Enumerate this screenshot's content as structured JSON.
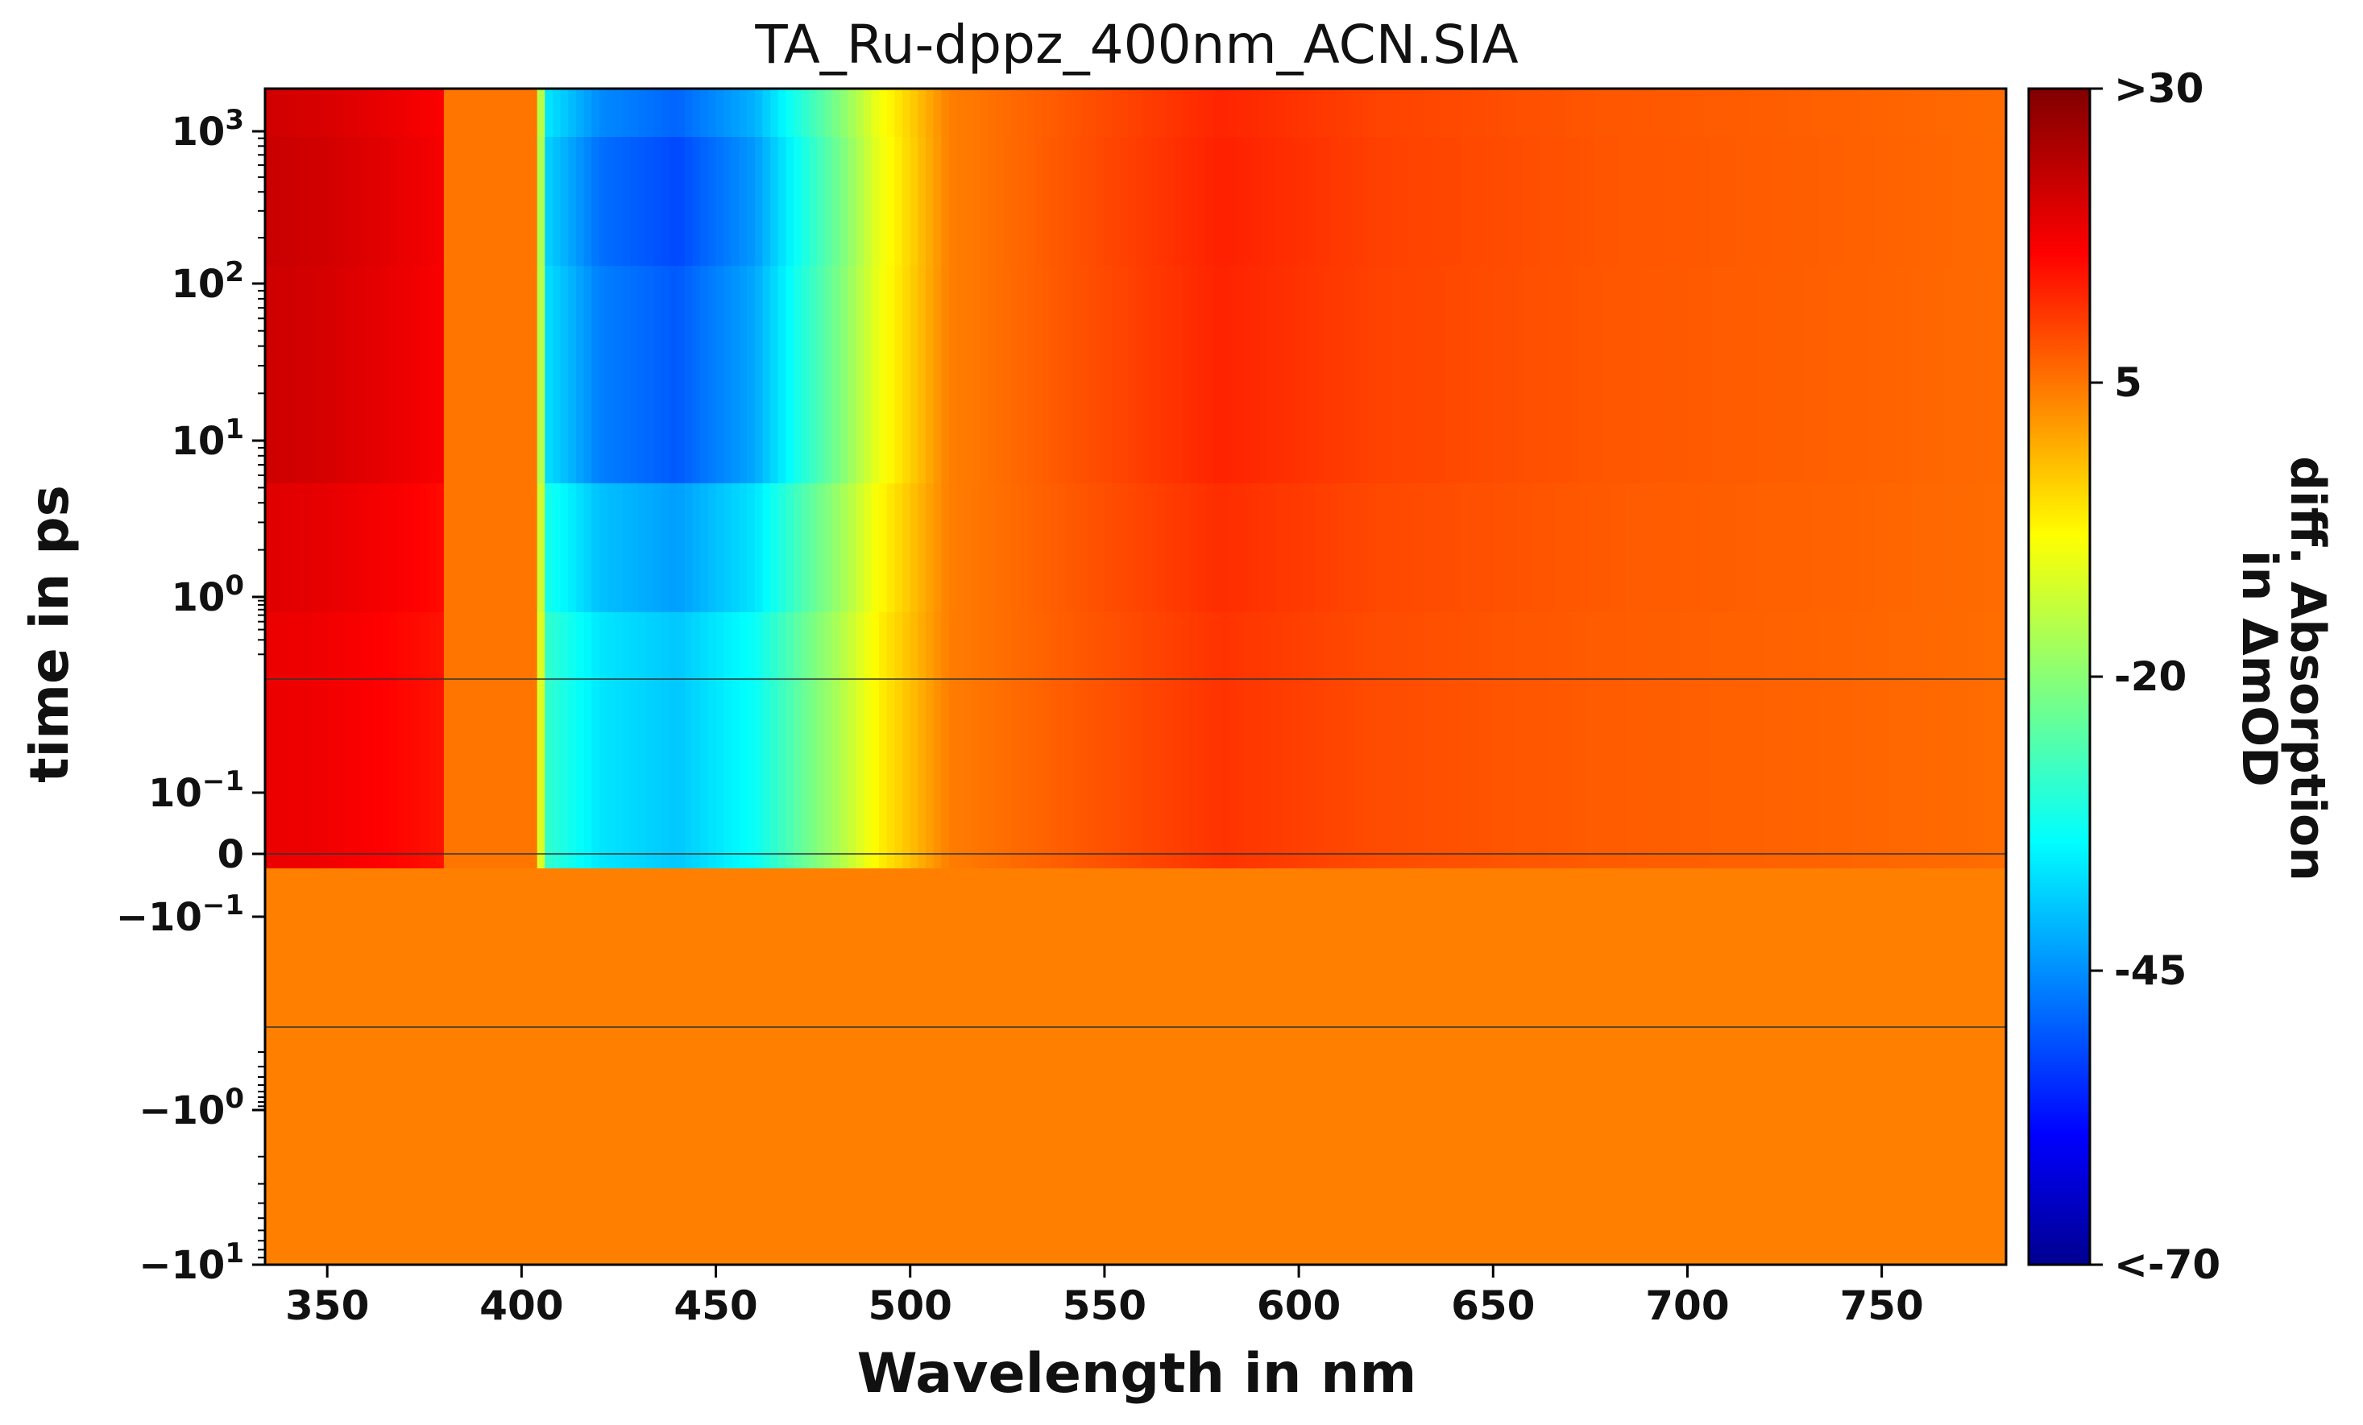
{
  "chart_data": {
    "type": "heatmap",
    "title": "TA_Ru-dppz_400nm_ACN.SIA",
    "xlabel": "Wavelength in nm",
    "ylabel": "time in ps",
    "xlim": [
      334,
      782
    ],
    "x_ticks": [
      {
        "value": 350,
        "label": "350"
      },
      {
        "value": 400,
        "label": "400"
      },
      {
        "value": 450,
        "label": "450"
      },
      {
        "value": 500,
        "label": "500"
      },
      {
        "value": 550,
        "label": "550"
      },
      {
        "value": 600,
        "label": "600"
      },
      {
        "value": 650,
        "label": "650"
      },
      {
        "value": 700,
        "label": "700"
      },
      {
        "value": 750,
        "label": "750"
      }
    ],
    "y_scale": "symlog (linear region about ±0.3 ps, gap markers at 0.3 and -0.3)",
    "y_ticks": [
      {
        "base": "10",
        "exp": "3",
        "sign": ""
      },
      {
        "base": "10",
        "exp": "2",
        "sign": ""
      },
      {
        "base": "10",
        "exp": "1",
        "sign": ""
      },
      {
        "base": "10",
        "exp": "0",
        "sign": ""
      },
      {
        "base": "10",
        "exp": "−1",
        "sign": ""
      },
      {
        "base": "0",
        "exp": "",
        "sign": ""
      },
      {
        "base": "10",
        "exp": "−1",
        "sign": "−"
      },
      {
        "base": "10",
        "exp": "0",
        "sign": "−"
      },
      {
        "base": "10",
        "exp": "1",
        "sign": "−"
      }
    ],
    "colorbar": {
      "label_line1": "diff. Absorption",
      "label_line2": "in ΔmOD",
      "range": [
        -70,
        30
      ],
      "colormap": "jet",
      "ticks": [
        {
          "value": 30,
          "label": ">30"
        },
        {
          "value": 5,
          "label": "5"
        },
        {
          "value": -20,
          "label": "-20"
        },
        {
          "value": -45,
          "label": "-45"
        },
        {
          "value": -70,
          "label": "<-70"
        }
      ]
    },
    "spectrum_positive_time": [
      {
        "nm": 334,
        "v": 22
      },
      {
        "nm": 350,
        "v": 21
      },
      {
        "nm": 365,
        "v": 19
      },
      {
        "nm": 379,
        "v": 17
      },
      {
        "nm": 380,
        "v": 5
      },
      {
        "nm": 404,
        "v": 5
      },
      {
        "nm": 406,
        "v": -38
      },
      {
        "nm": 420,
        "v": -48
      },
      {
        "nm": 440,
        "v": -52
      },
      {
        "nm": 460,
        "v": -44
      },
      {
        "nm": 470,
        "v": -34
      },
      {
        "nm": 482,
        "v": -22
      },
      {
        "nm": 492,
        "v": -10
      },
      {
        "nm": 500,
        "v": -4
      },
      {
        "nm": 510,
        "v": 4
      },
      {
        "nm": 540,
        "v": 8
      },
      {
        "nm": 580,
        "v": 13
      },
      {
        "nm": 620,
        "v": 10
      },
      {
        "nm": 680,
        "v": 8
      },
      {
        "nm": 740,
        "v": 7
      },
      {
        "nm": 782,
        "v": 6
      }
    ],
    "spectrum_negative_time": [
      {
        "nm": 334,
        "v": 4
      },
      {
        "nm": 782,
        "v": 4
      }
    ],
    "early_time_evolution": "At t ≈ 0 to 1 ps, ESA 340–380 nm is ≈ 17 mOD, GSB near 450 nm is ≈ -40 mOD, and ESA around 580 nm is ≈ 8 mOD; these grow to peak near 10–100 ps and slightly decrease toward 10^3 ps.",
    "colors": {
      "frame": "#000000",
      "text": "#111111",
      "separator": "#333333"
    }
  }
}
